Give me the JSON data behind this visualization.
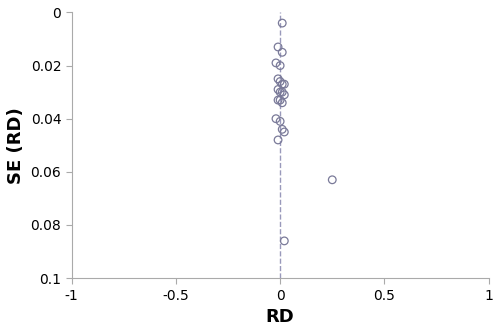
{
  "points_x": [
    0.01,
    -0.01,
    0.01,
    -0.02,
    0.0,
    -0.01,
    0.0,
    0.01,
    0.02,
    -0.01,
    0.0,
    0.01,
    0.02,
    -0.01,
    0.0,
    0.01,
    -0.02,
    0.0,
    0.01,
    0.02,
    -0.01,
    0.25,
    0.02
  ],
  "points_y": [
    0.004,
    0.013,
    0.015,
    0.019,
    0.02,
    0.025,
    0.026,
    0.027,
    0.027,
    0.029,
    0.03,
    0.03,
    0.031,
    0.033,
    0.033,
    0.034,
    0.04,
    0.041,
    0.044,
    0.045,
    0.048,
    0.063,
    0.086
  ],
  "xlim": [
    -1,
    1
  ],
  "ylim": [
    0.1,
    0
  ],
  "xticks": [
    -1,
    -0.5,
    0,
    0.5,
    1
  ],
  "yticks": [
    0,
    0.02,
    0.04,
    0.06,
    0.08,
    0.1
  ],
  "xlabel": "RD",
  "ylabel": "SE (RD)",
  "vline_x": 0.0,
  "marker_facecolor": "none",
  "marker_edge_color": "#7a7a99",
  "marker_size": 5.5,
  "dashed_line_color": "#9999bb",
  "background_color": "#ffffff",
  "xlabel_fontsize": 13,
  "ylabel_fontsize": 13,
  "tick_fontsize": 10,
  "spine_color": "#aaaaaa",
  "tick_color": "#aaaaaa"
}
